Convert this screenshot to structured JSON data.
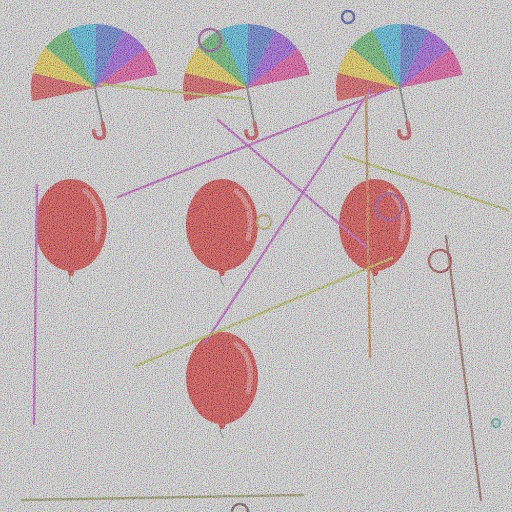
{
  "scene": {
    "background": "#e4e4e4",
    "noise": "multicolor-speckle",
    "umbrella_count": 3,
    "balloon_count": 4
  },
  "umbrella": {
    "icon": "umbrella-icon",
    "panel_colors": [
      "#e0242b",
      "#f4d21f",
      "#36b24a",
      "#18b4e8",
      "#2f5bd3",
      "#8a2be2",
      "#e91e8c"
    ],
    "handle_color": "#d01d2a",
    "shaft_color": "#666666"
  },
  "balloon": {
    "icon": "balloon-icon",
    "fill_color": "#dd0b0b",
    "highlight_color": "#f47a7a",
    "string_color": "#777777"
  },
  "distractors": {
    "line_colors": [
      "#c72fc7",
      "#b5c026",
      "#d36a18",
      "#8a8a3a",
      "#8a4a3a",
      "#6a4e6a"
    ],
    "circle_colors": [
      "#8c1f8c",
      "#b8a238",
      "#1e1e9a",
      "#a11818",
      "#3aaaa0",
      "#5a2a3a"
    ]
  }
}
